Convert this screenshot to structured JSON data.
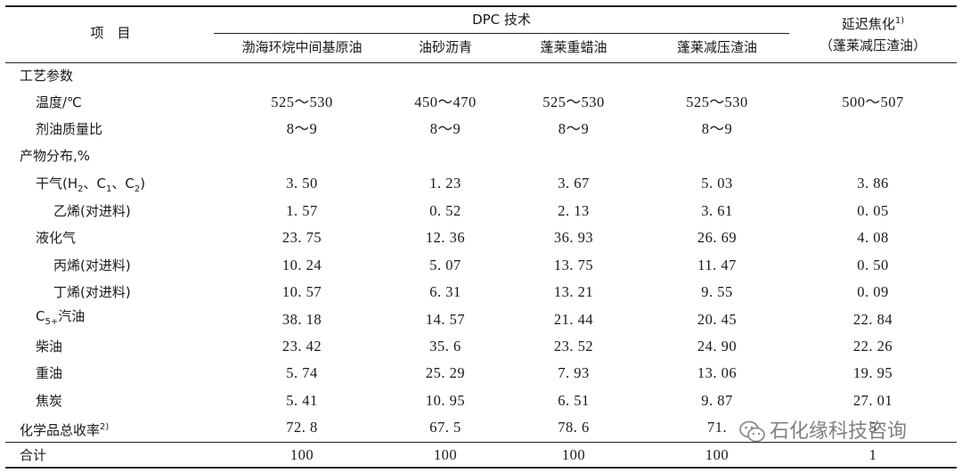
{
  "header": {
    "item_label": "项　目",
    "dpc_label": "DPC 技术",
    "delayed_coking_label": "延迟焦化",
    "delayed_coking_sup": "1)",
    "delayed_coking_sub": "（蓬莱减压渣油）",
    "feeds": [
      "渤海环烷中间基原油",
      "油砂沥青",
      "蓬莱重蜡油",
      "蓬莱减压渣油"
    ]
  },
  "rows": [
    {
      "label": "工艺参数",
      "values": [
        "",
        "",
        "",
        "",
        ""
      ]
    },
    {
      "label": "温度/℃",
      "values": [
        "525～530",
        "450～470",
        "525～530",
        "525～530",
        "500～507"
      ]
    },
    {
      "label": "剂油质量比",
      "values": [
        "8～9",
        "8～9",
        "8～9",
        "8～9",
        ""
      ]
    },
    {
      "label": "产物分布,%",
      "values": [
        "",
        "",
        "",
        "",
        ""
      ]
    },
    {
      "label": "干气(H2、C1、C2)",
      "values": [
        "3. 50",
        "1. 23",
        "3. 67",
        "5. 03",
        "3. 86"
      ]
    },
    {
      "label": "乙烯(对进料)",
      "values": [
        "1. 57",
        "0. 52",
        "2. 13",
        "3. 61",
        "0. 05"
      ]
    },
    {
      "label": "液化气",
      "values": [
        "23. 75",
        "12. 36",
        "36. 93",
        "26. 69",
        "4. 08"
      ]
    },
    {
      "label": "丙烯(对进料)",
      "values": [
        "10. 24",
        "5. 07",
        "13. 75",
        "11. 47",
        "0. 50"
      ]
    },
    {
      "label": "丁烯(对进料)",
      "values": [
        "10. 57",
        "6. 31",
        "13. 21",
        "9. 55",
        "0. 09"
      ]
    },
    {
      "label": "C5+汽油",
      "values": [
        "38. 18",
        "14. 57",
        "21. 44",
        "20. 45",
        "22. 84"
      ]
    },
    {
      "label": "柴油",
      "values": [
        "23. 42",
        "35. 6",
        "23. 52",
        "24. 90",
        "22. 26"
      ]
    },
    {
      "label": "重油",
      "values": [
        "5. 74",
        "25. 29",
        "7. 93",
        "13. 06",
        "19. 95"
      ]
    },
    {
      "label": "焦炭",
      "values": [
        "5. 41",
        "10. 95",
        "6. 51",
        "9. 87",
        "27. 01"
      ]
    },
    {
      "label": "化学品总收率",
      "label_sup": "2)",
      "values": [
        "72. 8",
        "67. 5",
        "78. 6",
        "71.",
        "5"
      ]
    },
    {
      "label": "合计",
      "values": [
        "100",
        "100",
        "100",
        "100",
        "1"
      ]
    }
  ],
  "label_parts": {
    "dry_gas_prefix": "干气(H",
    "dry_gas_h_sub": "2",
    "dry_gas_c1": "、C",
    "dry_gas_c1_sub": "1",
    "dry_gas_c2": "、C",
    "dry_gas_c2_sub": "2",
    "dry_gas_suffix": ")",
    "c5_prefix": "C",
    "c5_sub": "5+",
    "c5_suffix": "汽油"
  },
  "watermark": {
    "text": "石化缘科技咨询",
    "icon": "wechat-icon",
    "color": "#6b6b6b"
  }
}
